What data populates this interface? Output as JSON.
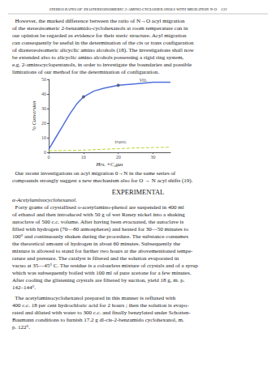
{
  "chart_data": {
    "type": "line",
    "xlabel": "Hrs. +C₂gas",
    "ylabel": "% Conversion",
    "xlim": [
      0,
      35
    ],
    "ylim": [
      0,
      50
    ],
    "xticks": [
      0,
      10,
      20,
      30
    ],
    "yticks": [
      0,
      10,
      20,
      30,
      40,
      50
    ],
    "grid": false,
    "series": [
      {
        "type": "line",
        "line_style": "solid",
        "x": [
          0,
          2,
          4,
          6,
          8,
          10,
          13,
          16,
          20,
          25,
          30,
          35
        ],
        "values": [
          2,
          10,
          18,
          26,
          33,
          38,
          42,
          44,
          46,
          47,
          48,
          48
        ]
      },
      {
        "type": "line",
        "line_style": "dashed",
        "x": [
          0,
          5,
          10,
          15,
          20,
          25,
          30,
          35
        ],
        "values": [
          1,
          1.2,
          1.5,
          2.0,
          2.5,
          3.0,
          3.3,
          3.5
        ]
      },
      {
        "type": "scatter",
        "marker": "o",
        "x": [
          10,
          20
        ],
        "values": [
          38,
          46
        ]
      }
    ],
    "annotations": [
      {
        "text": "Vib.",
        "x": 26,
        "y": 47
      },
      {
        "text": "trans.",
        "x": 19,
        "y": 5
      }
    ]
  },
  "page": {
    "header": "STEREO RATIO OF DIASTEREOISOMERIC 2-AMINO CYCLOHEXANOLS WITH MIGRATION N-O    133",
    "before_chart": [
      "  However, the marked difference between the ratio of N→O acyl migration",
      "of the stereoisomeric 2-benzamido-cyclohexanols at room temperature can in",
      "our opinion be regarded as evidence for their steric structure. Acyl migration",
      "can consequently be useful in the determination of the cis or trans configuration",
      "of diastereoisomeric alicyclic amino alcohols (18). The investigations shall now",
      "be extended also to alicyclic amino alcohols possessing a rigid ring system,",
      "e.g. 2-aminocyclopentanols, in order to investigate the boundaries and possible",
      "limitations of our method for the determination of configuration."
    ],
    "after_chart": [
      "  Our recent investigations on acyl migration 0→N in the same series of",
      "compounds strongly suggest a new mechanism also for O → N acyl shifts (19)."
    ],
    "section_title": "EXPERIMENTAL",
    "subsection_title": "α-Acetylaminocyclohexanol.",
    "paragraphs": [
      [
        "  Forty grams of crystallised o-acetylamino-phenol are suspended in 400 ml",
        "of ethanol and then introduced with 50 g of wet Raney nickel into a shaking",
        "autoclave of 500 c.c. volume. After having been evacuated, the autoclave is",
        "filled with hydrogen (70—80 atmospheres) and heated for 30—50 minutes to",
        "100° and continuously shaken during the procedure. The substance consumes",
        "the theoretical amount of hydrogen in about 60 minutes. Subsequently the",
        "mixture is allowed to stand for further two hours at the abovementioned tempe-",
        "rature and pressure. The catalyst is filtered and the solution evaporated in",
        "vacuo at 35—45° C. The residue is a colourless mixture of crystals and of a syrup",
        "which was subsequently boiled with 100 ml of pure acetone for a few minutes.",
        "After cooling the glistening crystals are filtered by suction, yield 18 g, m. p.",
        "142–144°."
      ],
      [
        "  The acetylaminocyclohexanol prepared in this manner is refluxed with",
        "400 c.c. 18 per cent hydrochloric acid for 2 hours ; then the solution is evapo-",
        "rated and diluted with water to 300 c.c. and finally benzylated under Schotten-",
        "Baumann conditions to furnish 17.2 g dl-cis-2-benzamido cyclohexanol, m.",
        "p. 122°."
      ]
    ]
  }
}
